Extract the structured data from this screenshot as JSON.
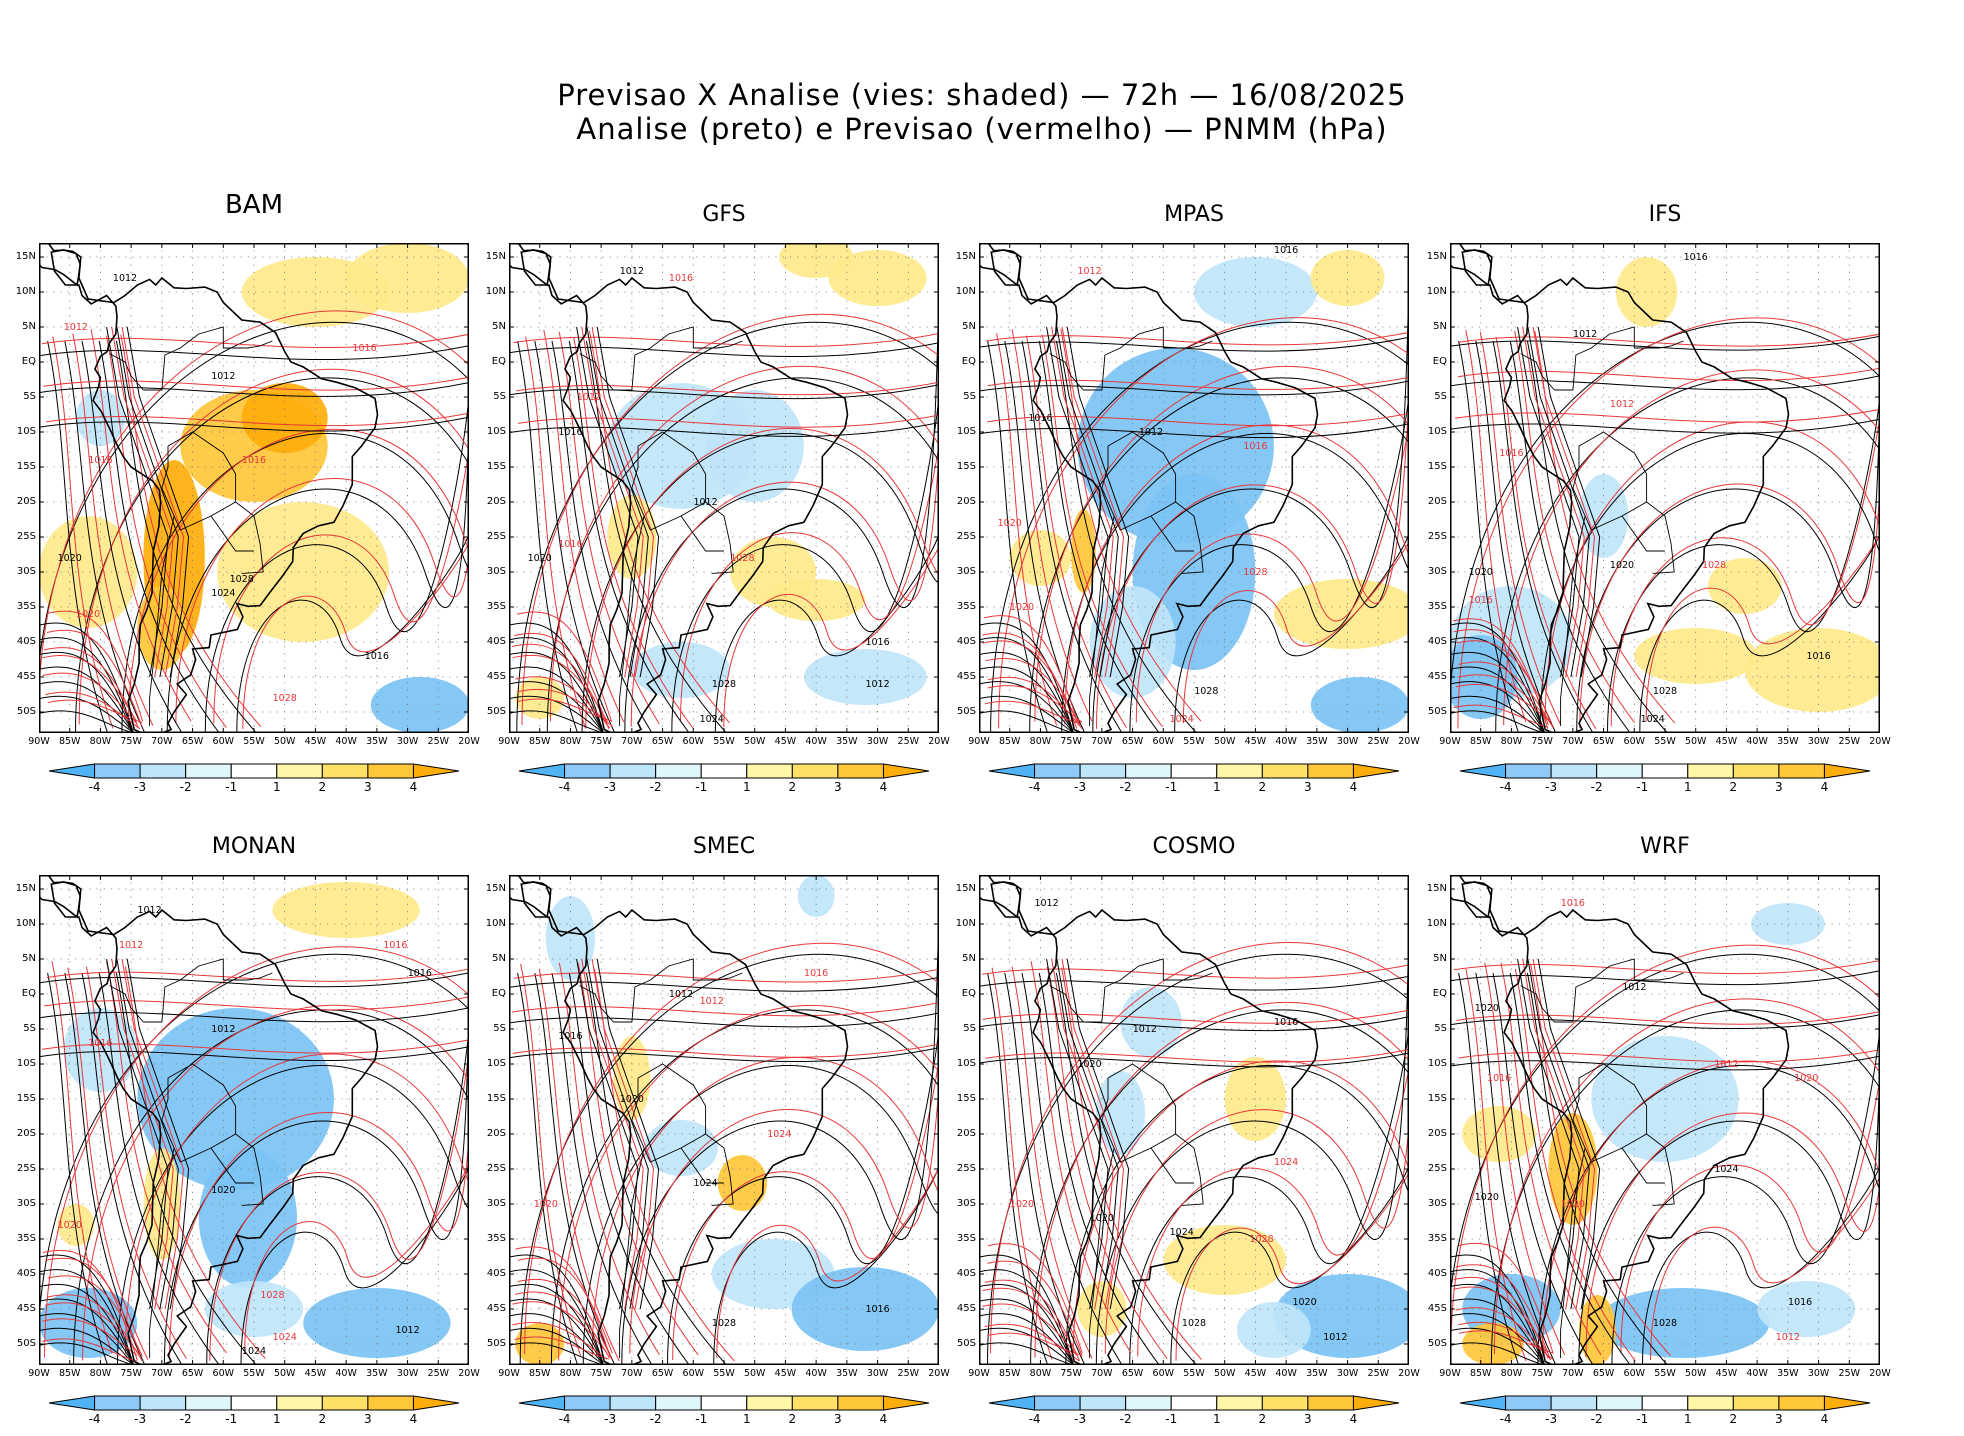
{
  "header": {
    "line1": "Previsao X Analise (vies: shaded) — 72h — 16/08/2025",
    "line2": "Analise (preto) e Previsao (vermelho) — PNMM (hPa)"
  },
  "axes": {
    "lat_labels": [
      "15N",
      "10N",
      "5N",
      "EQ",
      "5S",
      "10S",
      "15S",
      "20S",
      "25S",
      "30S",
      "35S",
      "40S",
      "45S",
      "50S"
    ],
    "lon_labels": [
      "90W",
      "85W",
      "80W",
      "75W",
      "70W",
      "65W",
      "60W",
      "55W",
      "50W",
      "45W",
      "40W",
      "35W",
      "30W",
      "25W",
      "20W"
    ]
  },
  "colorbar": {
    "labels": [
      "-4",
      "-3",
      "-2",
      "-1",
      "1",
      "2",
      "3",
      "4"
    ],
    "colors": [
      "#4fb3f5",
      "#8fc9f7",
      "#bfe5fa",
      "#dff7fa",
      "#ffffff",
      "#fff6a8",
      "#ffe167",
      "#ffc73a",
      "#ffad0a"
    ]
  },
  "palette": {
    "analysis_contour": "#000000",
    "forecast_contour": "#e8373a",
    "negative_bias": "#7cc3f4",
    "positive_bias": "#ffe37a"
  },
  "panels": [
    {
      "name": "BAM",
      "isobars": {
        "analysis": [
          "1012",
          "1016",
          "1020",
          "1024",
          "1028"
        ],
        "forecast": [
          "1012",
          "1016",
          "1020",
          "1024",
          "1028"
        ]
      }
    },
    {
      "name": "GFS",
      "isobars": {
        "analysis": [
          "1012",
          "1016",
          "1020",
          "1024",
          "1028"
        ],
        "forecast": [
          "1012",
          "1016",
          "1020",
          "1028"
        ]
      }
    },
    {
      "name": "MPAS",
      "isobars": {
        "analysis": [
          "1012",
          "1016",
          "1020",
          "1024",
          "1028"
        ],
        "forecast": [
          "1012",
          "1016",
          "1020",
          "1024",
          "1028"
        ]
      }
    },
    {
      "name": "IFS",
      "isobars": {
        "analysis": [
          "1012",
          "1016",
          "1020",
          "1024",
          "1028"
        ],
        "forecast": [
          "1012",
          "1016",
          "1020",
          "1028"
        ]
      }
    },
    {
      "name": "MONAN",
      "isobars": {
        "analysis": [
          "1012",
          "1016",
          "1020",
          "1024",
          "1028"
        ],
        "forecast": [
          "1012",
          "1016",
          "1020",
          "1024",
          "1028"
        ]
      }
    },
    {
      "name": "SMEC",
      "isobars": {
        "analysis": [
          "1012",
          "1016",
          "1020",
          "1024",
          "1028"
        ],
        "forecast": [
          "1012",
          "1016",
          "1020",
          "1024"
        ]
      }
    },
    {
      "name": "COSMO",
      "isobars": {
        "analysis": [
          "1012",
          "1016",
          "1020",
          "1024",
          "1028"
        ],
        "forecast": [
          "1012",
          "1016",
          "1020",
          "1024",
          "1028"
        ]
      }
    },
    {
      "name": "WRF",
      "isobars": {
        "analysis": [
          "1012",
          "1016",
          "1020",
          "1024",
          "1028"
        ],
        "forecast": [
          "1012",
          "1016",
          "1020",
          "1024",
          "1028"
        ]
      }
    }
  ]
}
